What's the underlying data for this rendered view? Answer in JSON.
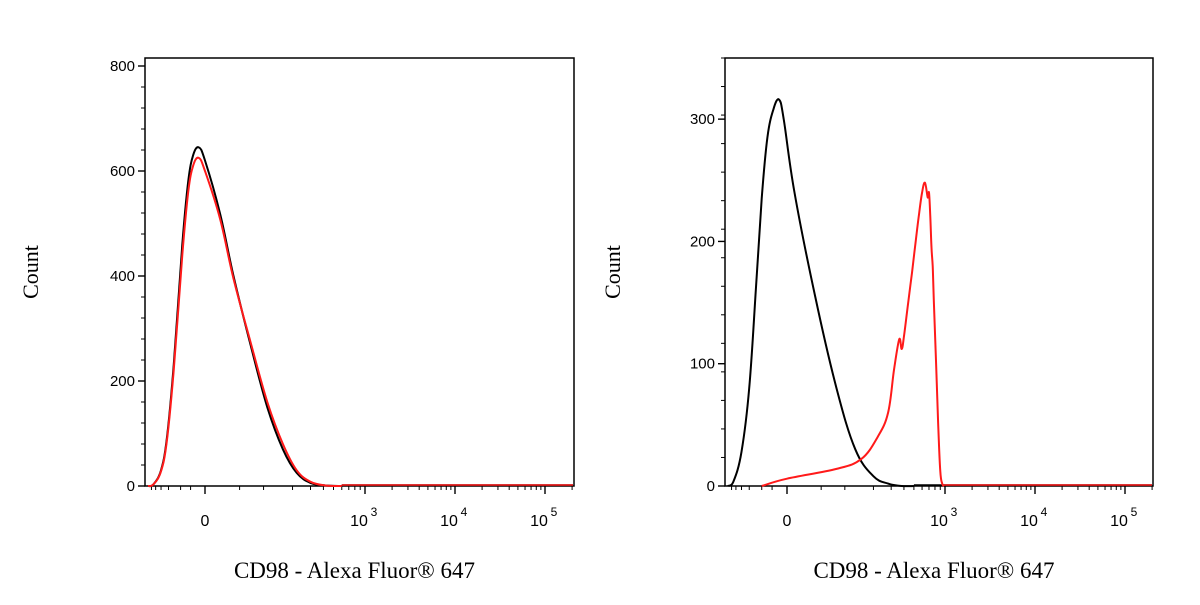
{
  "colors": {
    "control": "#000000",
    "sample": "#ff1a1a",
    "axis": "#000000"
  },
  "chart_data": [
    {
      "type": "line",
      "title": "",
      "xlabel": "CD98 - Alexa Fluor® 647",
      "ylabel": "Count",
      "x_scale": "biexponential",
      "x_tick_labels": [
        "0",
        "10^3",
        "10^4",
        "10^5"
      ],
      "ylim": [
        0,
        800
      ],
      "y_ticks": [
        "0",
        "200",
        "400",
        "600",
        "800"
      ],
      "series": [
        {
          "name": "",
          "color": "#000000",
          "x": [
            -600,
            -450,
            -300,
            -220,
            -150,
            -90,
            -60,
            -40,
            -20,
            0,
            20,
            40,
            70,
            110,
            160,
            220,
            300,
            420,
            600
          ],
          "y": [
            0,
            3,
            30,
            90,
            230,
            460,
            580,
            630,
            645,
            620,
            520,
            400,
            270,
            150,
            70,
            25,
            6,
            1,
            0
          ]
        },
        {
          "name": "",
          "color": "#ff1a1a",
          "x": [
            -600,
            -450,
            -300,
            -220,
            -150,
            -90,
            -60,
            -40,
            -20,
            0,
            20,
            40,
            70,
            110,
            160,
            220,
            300,
            420,
            600
          ],
          "y": [
            0,
            3,
            28,
            85,
            220,
            440,
            560,
            610,
            625,
            600,
            510,
            395,
            275,
            160,
            80,
            30,
            8,
            1,
            0
          ]
        }
      ]
    },
    {
      "type": "line",
      "title": "",
      "xlabel": "CD98 - Alexa Fluor® 647",
      "ylabel": "Count",
      "x_scale": "biexponential",
      "x_tick_labels": [
        "0",
        "10^3",
        "10^4",
        "10^5"
      ],
      "ylim": [
        0,
        350
      ],
      "y_ticks": [
        "0",
        "100",
        "200",
        "300"
      ],
      "series": [
        {
          "name": "",
          "color": "#000000",
          "x": [
            -600,
            -450,
            -300,
            -200,
            -140,
            -100,
            -70,
            -45,
            -25,
            -10,
            10,
            40,
            80,
            130,
            200,
            280,
            380,
            500
          ],
          "y": [
            0,
            4,
            28,
            80,
            160,
            235,
            285,
            308,
            316,
            300,
            240,
            155,
            80,
            30,
            8,
            2,
            0,
            0
          ],
          "scale": 1
        },
        {
          "name": "",
          "color": "#ff1a1a",
          "x": [
            -100,
            0,
            80,
            150,
            220,
            280,
            320,
            360,
            380,
            400,
            440,
            480,
            520,
            560,
            600,
            640,
            680,
            700,
            720,
            740,
            760,
            780,
            820,
            860,
            900,
            940,
            980
          ],
          "y": [
            0,
            6,
            14,
            22,
            40,
            60,
            95,
            120,
            112,
            122,
            150,
            175,
            200,
            222,
            240,
            248,
            236,
            240,
            222,
            195,
            180,
            152,
            100,
            50,
            12,
            2,
            0
          ]
        }
      ]
    }
  ]
}
